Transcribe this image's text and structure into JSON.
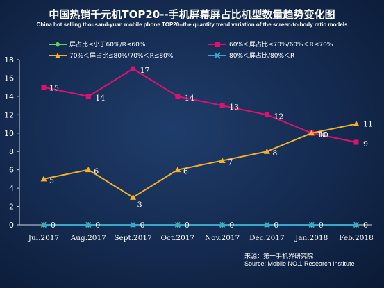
{
  "title": "中国热销千元机TOP20--手机屏幕屏占比机型数量趋势变化图",
  "subtitle": "China hot selling thousand-yuan mobile phone TOP20--the quantity trend variation of the screen-to-body ratio models",
  "source": {
    "line1": "来源：第一手机界研究院",
    "line2": "Source: Mobile NO.1 Research Institute"
  },
  "chart_data": {
    "type": "line",
    "title": "中国热销千元机TOP20--手机屏幕屏占比机型数量趋势变化图",
    "categories": [
      "Jul.2017",
      "Aug.2017",
      "Sept.2017",
      "Oct.2017",
      "Nov.2017",
      "Dec.2017",
      "Jan.2018",
      "Feb.2018"
    ],
    "ylim": [
      0,
      18
    ],
    "yticks": [
      0,
      2,
      4,
      6,
      8,
      10,
      12,
      14,
      16,
      18
    ],
    "grid": false,
    "legend": "top",
    "series": [
      {
        "name": "屏占比≤小于60%/R≤60%",
        "values": [
          0,
          0,
          0,
          0,
          0,
          0,
          0,
          0
        ],
        "color": "#5cd65c",
        "marker": "diamond"
      },
      {
        "name": "60%＜屏占比≤70%/60%＜R≤70%",
        "values": [
          15,
          14,
          17,
          14,
          13,
          12,
          10,
          9
        ],
        "color": "#e0116e",
        "marker": "square"
      },
      {
        "name": "70%＜屏占比≤80%/70%＜R≤80%",
        "values": [
          5,
          6,
          3,
          6,
          7,
          8,
          10,
          11
        ],
        "color": "#f6b12a",
        "marker": "triangle"
      },
      {
        "name": "80%＜屏占比/80%＜R",
        "values": [
          0,
          0,
          0,
          0,
          0,
          0,
          0,
          0
        ],
        "color": "#3aa6c9",
        "marker": "x"
      }
    ]
  }
}
